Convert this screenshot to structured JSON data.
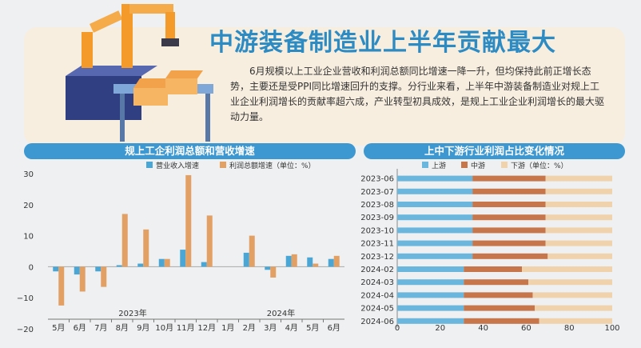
{
  "headline": "中游装备制造业上半年贡献最大",
  "intro": "6月规模以上工业企业营收和利润总额同比增速一降一升，但均保持此前正增长态势，主要还是受PPI同比增速回升的支撑。分行业来看，上半年中游装备制造业对规上工业企业利润增长的贡献率超六成，产业转型初具成效，是规上工业企业利润增长的最大驱动力量。",
  "colors": {
    "revenue": "#4aa7d5",
    "profit": "#e3a064",
    "upstream": "#6bb6dd",
    "midstream": "#c6764a",
    "downstream": "#f0d3ad"
  },
  "chart_data": [
    {
      "type": "bar",
      "title": "规上工企利润总额和营收增速",
      "legend_note": "（单位：%）",
      "categories": [
        "5月",
        "6月",
        "7月",
        "8月",
        "9月",
        "10月",
        "11月",
        "12月",
        "1月",
        "2月",
        "3月",
        "4月",
        "5月",
        "6月"
      ],
      "year_labels": [
        {
          "label": "2023年",
          "from": 0,
          "to": 7
        },
        {
          "label": "2024年",
          "from": 8,
          "to": 13
        }
      ],
      "series": [
        {
          "name": "营业收入增速",
          "values": [
            -1.5,
            -2.5,
            -1.5,
            0.5,
            1,
            2.5,
            5.5,
            1.5,
            null,
            4.5,
            -1,
            3.5,
            3,
            2.5
          ]
        },
        {
          "name": "利润总额增速",
          "values": [
            -12.5,
            -8,
            -6.5,
            17,
            12,
            2.5,
            29.5,
            16.5,
            null,
            10,
            -3.5,
            4,
            1,
            3.5
          ]
        }
      ],
      "y_ticks": [
        30,
        20,
        10,
        0,
        -10,
        -20
      ],
      "ylim": [
        -20,
        30
      ],
      "grid": false,
      "legend_position": "top"
    },
    {
      "type": "bar",
      "orientation": "horizontal",
      "stacked": true,
      "title": "上中下游行业利润占比变化情况",
      "legend_note": "（单位：%）",
      "categories": [
        "2023-06",
        "2023-07",
        "2023-08",
        "2023-09",
        "2023-10",
        "2023-11",
        "2023-12",
        "2024-02",
        "2024-03",
        "2024-04",
        "2024-05",
        "2024-06"
      ],
      "series": [
        {
          "name": "上游",
          "values": [
            35,
            35,
            35,
            35,
            35,
            35,
            35,
            31,
            31,
            31,
            31,
            31
          ]
        },
        {
          "name": "中游",
          "values": [
            34,
            34,
            34,
            34,
            34,
            34,
            35,
            27,
            30,
            32,
            33,
            35
          ]
        },
        {
          "name": "下游",
          "values": [
            31,
            31,
            31,
            31,
            31,
            31,
            30,
            42,
            39,
            37,
            36,
            34
          ]
        }
      ],
      "x_ticks": [
        0,
        20,
        40,
        60,
        80,
        100
      ],
      "xlim": [
        0,
        100
      ],
      "grid": false,
      "legend_position": "top"
    }
  ]
}
